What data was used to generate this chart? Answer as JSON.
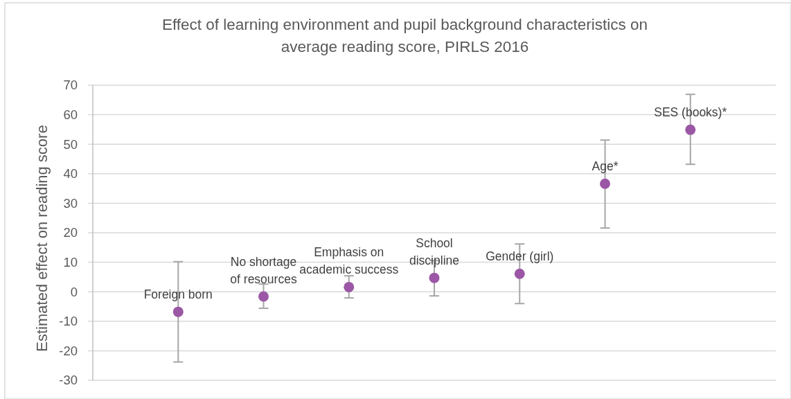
{
  "chart_data": {
    "type": "scatter",
    "title": "Effect of learning environment and pupil background characteristics on\naverage reading score, PIRLS 2016",
    "ylabel": "Estimated effect on reading score",
    "categories": [
      null,
      null,
      null,
      null,
      null,
      null,
      null
    ],
    "values": [
      -6.8,
      -1.6,
      1.6,
      4.7,
      6.1,
      36.6,
      54.9
    ],
    "errors": [
      [
        -23.8,
        10.2
      ],
      [
        -5.6,
        2.6
      ],
      [
        -2.1,
        5.4
      ],
      [
        -1.4,
        10.6
      ],
      [
        -4.0,
        16.2
      ],
      [
        21.6,
        51.4
      ],
      [
        43.2,
        66.9
      ]
    ],
    "color": "#9b57a5",
    "marker": "circle",
    "grid": "y",
    "tick_labels": "y",
    "ylim": [
      -30,
      70
    ],
    "yticks": [
      -30,
      -20,
      -10,
      0,
      10,
      20,
      30,
      40,
      50,
      60,
      70
    ],
    "annotations": [
      {
        "text": "Foreign born",
        "y": -6.8
      },
      {
        "text": "No shortage\nof resources",
        "y": -1.6
      },
      {
        "text": "Emphasis on\nacademic success",
        "y": 1.6
      },
      {
        "text": "School\ndiscipline",
        "y": 4.7
      },
      {
        "text": "Gender (girl)",
        "y": 6.1
      },
      {
        "text": "Age*",
        "y": 36.6
      },
      {
        "text": "SES (books)*",
        "y": 54.9
      }
    ]
  }
}
